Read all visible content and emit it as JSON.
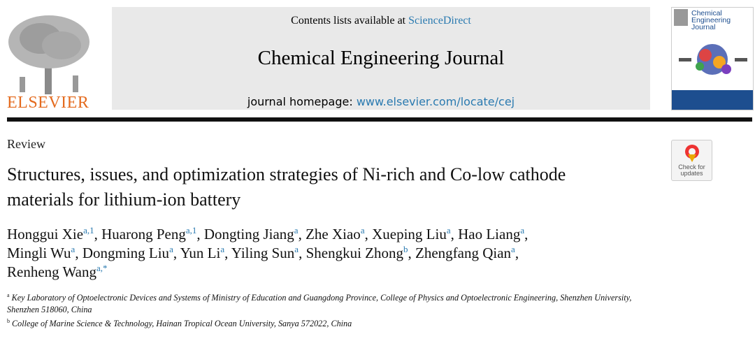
{
  "header": {
    "contents_prefix": "Contents lists available at",
    "contents_link": "ScienceDirect",
    "journal_title": "Chemical Engineering Journal",
    "homepage_prefix": "journal homepage:",
    "homepage_link": "www.elsevier.com/locate/cej",
    "publisher": "ELSEVIER",
    "cover_title": "Chemical Engineering Journal"
  },
  "badge": {
    "label": "Check for updates"
  },
  "article": {
    "type": "Review",
    "title": "Structures, issues, and optimization strategies of Ni-rich and Co-low cathode materials for lithium-ion battery",
    "author_separator": ",",
    "authors": [
      {
        "name": "Honggui Xie",
        "sup": "a,1"
      },
      {
        "name": "Huarong Peng",
        "sup": "a,1"
      },
      {
        "name": "Dongting Jiang",
        "sup": "a"
      },
      {
        "name": "Zhe Xiao",
        "sup": "a"
      },
      {
        "name": "Xueping Liu",
        "sup": "a"
      },
      {
        "name": "Hao Liang",
        "sup": "a"
      },
      {
        "name": "Mingli Wu",
        "sup": "a"
      },
      {
        "name": "Dongming Liu",
        "sup": "a"
      },
      {
        "name": "Yun Li",
        "sup": "a"
      },
      {
        "name": "Yiling Sun",
        "sup": "a"
      },
      {
        "name": "Shengkui Zhong",
        "sup": "b"
      },
      {
        "name": "Zhengfang Qian",
        "sup": "a"
      },
      {
        "name": "Renheng Wang",
        "sup": "a,*"
      }
    ],
    "affiliations": [
      {
        "mark": "a",
        "text": "Key Laboratory of Optoelectronic Devices and Systems of Ministry of Education and Guangdong Province, College of Physics and Optoelectronic Engineering, Shenzhen University, Shenzhen 518060, China"
      },
      {
        "mark": "b",
        "text": "College of Marine Science & Technology, Hainan Tropical Ocean University, Sanya 572022, China"
      }
    ]
  }
}
